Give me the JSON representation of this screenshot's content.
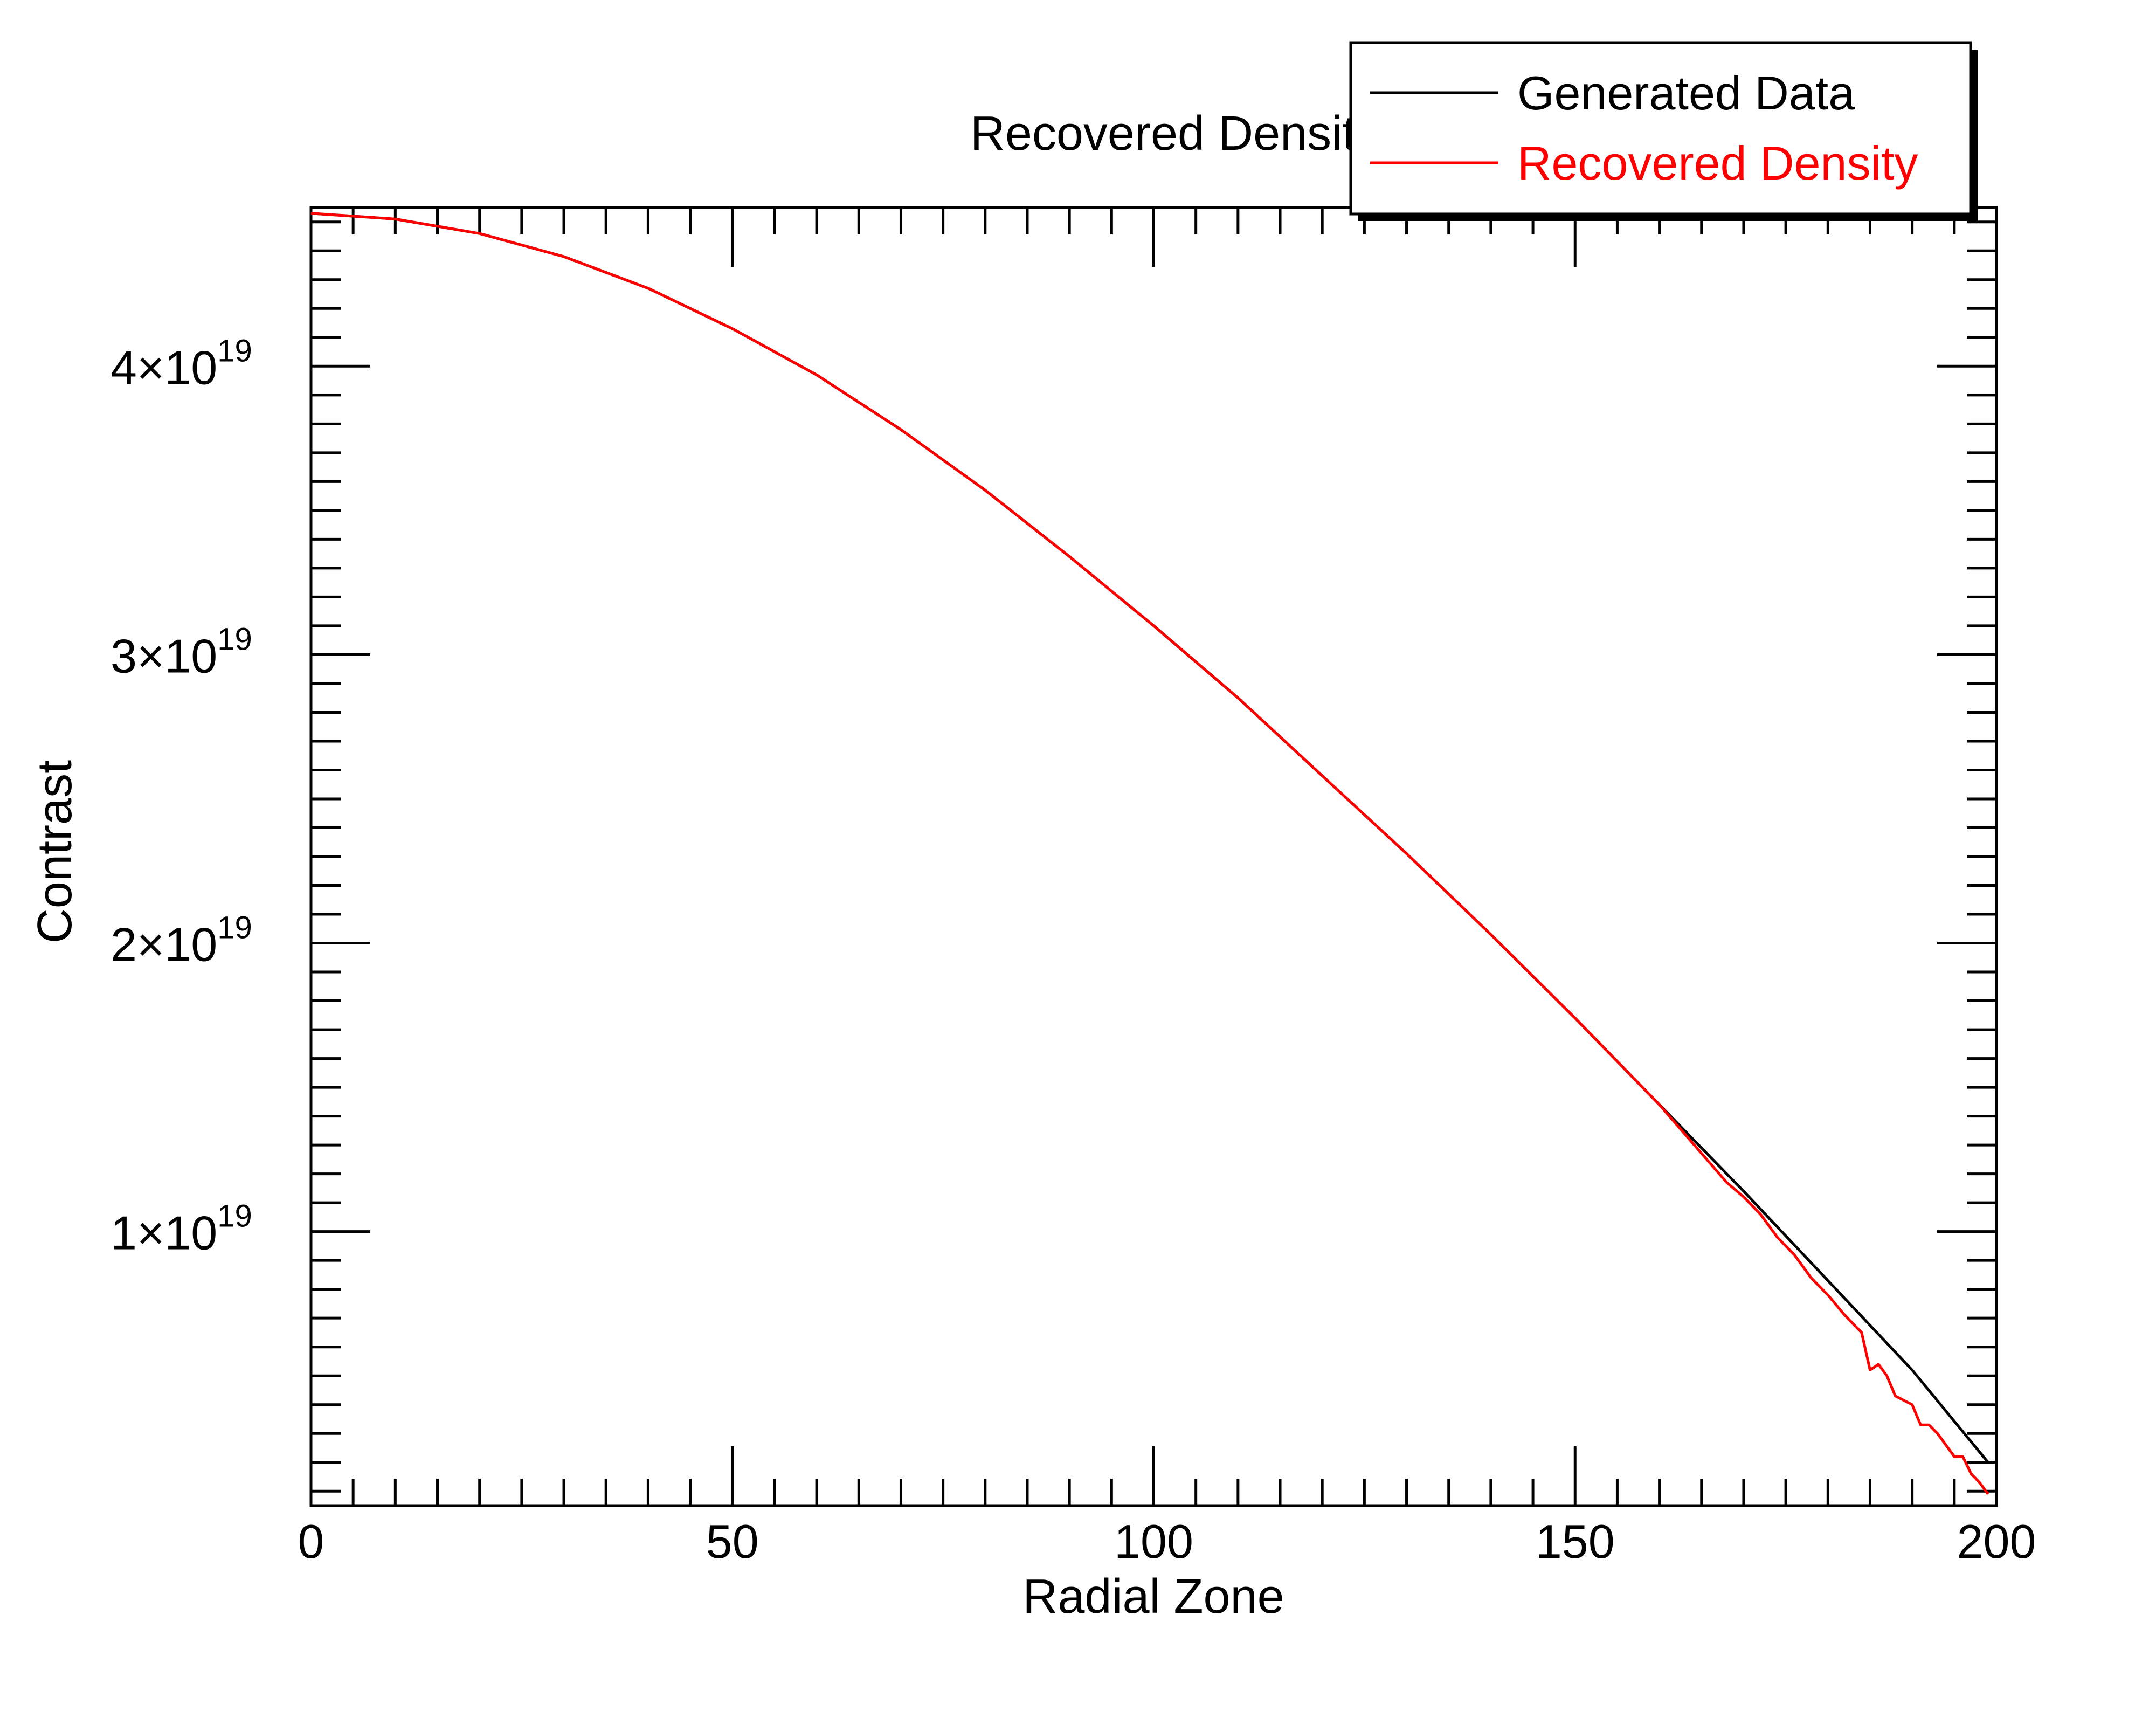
{
  "chart_data": {
    "type": "line",
    "title": "Recovered Density",
    "xlabel": "Radial Zone",
    "ylabel": "Contrast",
    "xlim": [
      0,
      200
    ],
    "ylim": [
      5e+17,
      4.55e+19
    ],
    "x_ticks": [
      {
        "value": 0,
        "label": "0"
      },
      {
        "value": 50,
        "label": "50"
      },
      {
        "value": 100,
        "label": "100"
      },
      {
        "value": 150,
        "label": "150"
      },
      {
        "value": 200,
        "label": "200"
      }
    ],
    "y_ticks": [
      {
        "value": 1e+19,
        "mantissa": "1",
        "base": "×10",
        "exponent": "19"
      },
      {
        "value": 2e+19,
        "mantissa": "2",
        "base": "×10",
        "exponent": "19"
      },
      {
        "value": 3e+19,
        "mantissa": "3",
        "base": "×10",
        "exponent": "19"
      },
      {
        "value": 4e+19,
        "mantissa": "4",
        "base": "×10",
        "exponent": "19"
      }
    ],
    "legend": {
      "placement": "top-right",
      "entries": [
        "Generated Data",
        "Recovered Density"
      ]
    },
    "grid": false,
    "series": [
      {
        "name": "Generated Data",
        "color": "#000000",
        "x": [
          0,
          10,
          20,
          30,
          40,
          50,
          60,
          70,
          80,
          90,
          100,
          110,
          120,
          130,
          140,
          150,
          160,
          170,
          180,
          190,
          199
        ],
        "y": [
          4.53e+19,
          4.51e+19,
          4.46e+19,
          4.38e+19,
          4.27e+19,
          4.13e+19,
          3.97e+19,
          3.78e+19,
          3.57e+19,
          3.34e+19,
          3.1e+19,
          2.85e+19,
          2.58e+19,
          2.31e+19,
          2.03e+19,
          1.74e+19,
          1.44e+19,
          1.14e+19,
          8.3e+18,
          5.2e+18,
          2e+18
        ]
      },
      {
        "name": "Recovered Density",
        "color": "#ff0000",
        "x": [
          0,
          10,
          20,
          30,
          40,
          50,
          60,
          70,
          80,
          90,
          100,
          110,
          120,
          130,
          140,
          150,
          160,
          168,
          170,
          172,
          174,
          176,
          178,
          180,
          182,
          184,
          185,
          186,
          187,
          188,
          190,
          191,
          192,
          193,
          194,
          195,
          196,
          197,
          198,
          199
        ],
        "y": [
          4.53e+19,
          4.51e+19,
          4.46e+19,
          4.38e+19,
          4.27e+19,
          4.13e+19,
          3.97e+19,
          3.78e+19,
          3.57e+19,
          3.34e+19,
          3.1e+19,
          2.85e+19,
          2.58e+19,
          2.31e+19,
          2.03e+19,
          1.74e+19,
          1.44e+19,
          1.17e+19,
          1.12e+19,
          1.06e+19,
          9.8e+18,
          9.2e+18,
          8.4e+18,
          7.8e+18,
          7.1e+18,
          6.5e+18,
          5.2e+18,
          5.4e+18,
          5e+18,
          4.3e+18,
          4e+18,
          3.3e+18,
          3.3e+18,
          3e+18,
          2.6e+18,
          2.2e+18,
          2.2e+18,
          1.6e+18,
          1.3e+18,
          9e+17
        ]
      }
    ]
  }
}
